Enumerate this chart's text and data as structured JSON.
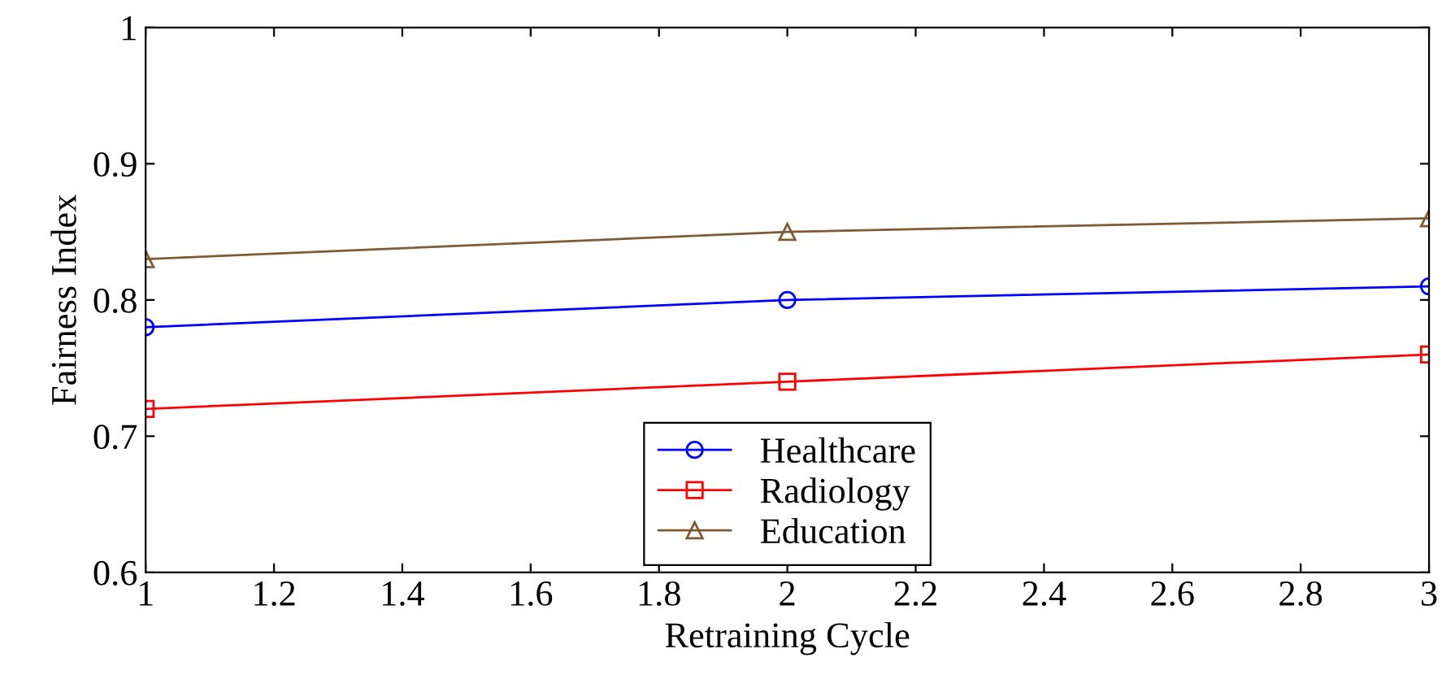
{
  "chart_data": {
    "type": "line",
    "xlabel": "Retraining Cycle",
    "ylabel": "Fairness Index",
    "x": [
      1,
      2,
      3
    ],
    "xlim": [
      1,
      3
    ],
    "xticks": [
      1,
      1.2,
      1.4,
      1.6,
      1.8,
      2,
      2.2,
      2.4,
      2.6,
      2.8,
      3
    ],
    "ylim": [
      0.6,
      1
    ],
    "yticks": [
      0.6,
      0.7,
      0.8,
      0.9,
      1
    ],
    "grid": false,
    "legend": "bottom",
    "series": [
      {
        "name": "Healthcare",
        "color": "#0000ff",
        "values": [
          0.78,
          0.8,
          0.81
        ],
        "marker": "circle"
      },
      {
        "name": "Radiology",
        "color": "#ff0000",
        "values": [
          0.72,
          0.74,
          0.76
        ],
        "marker": "square"
      },
      {
        "name": "Education",
        "color": "#7f5a33",
        "values": [
          0.83,
          0.85,
          0.86
        ],
        "marker": "triangle"
      }
    ]
  }
}
